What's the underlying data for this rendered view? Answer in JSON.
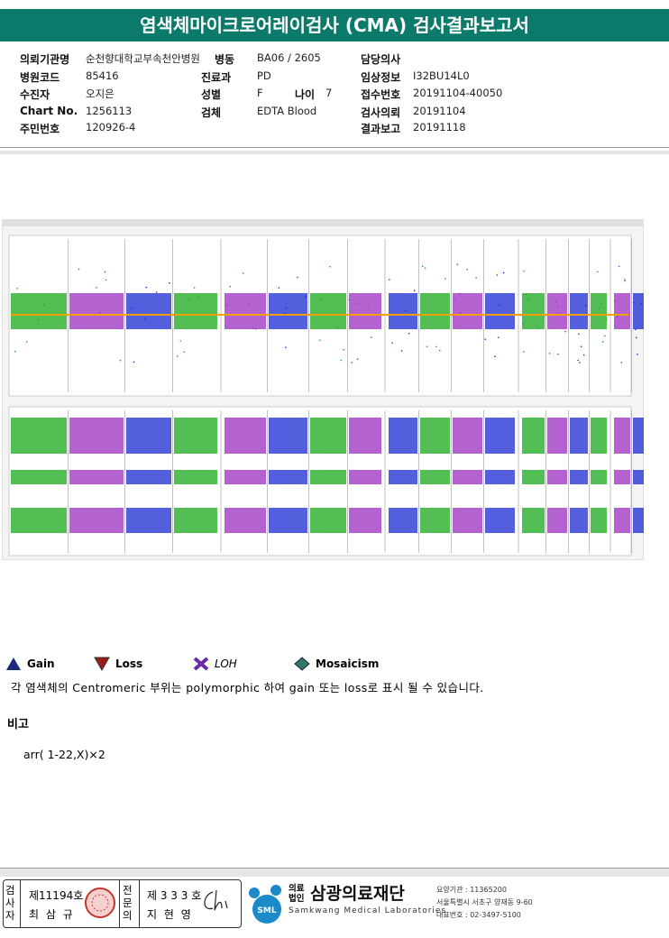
{
  "header": {
    "title": "염색체마이크로어레이검사 (CMA) 검사결과보고서"
  },
  "info": {
    "hospital": {
      "label": "의뢰기관명",
      "value": "순천향대학교부속천안병원"
    },
    "ward": {
      "label": "병동",
      "value": "BA06 / 2605"
    },
    "doctor": {
      "label": "담당의사"
    },
    "hospital_code": {
      "label": "병원코드",
      "value": "85416"
    },
    "department": {
      "label": "진료과",
      "value": "PD"
    },
    "clinical_info": {
      "label": "임상정보",
      "value": "I32BU14L0"
    },
    "patient": {
      "label": "수진자",
      "value": "오지은"
    },
    "sex": {
      "label": "성별",
      "value": "F"
    },
    "age": {
      "label": "나이",
      "value": "7"
    },
    "receipt_no": {
      "label": "접수번호",
      "value": "20191104-40050"
    },
    "chart_no": {
      "label": "Chart No.",
      "value": "1256113"
    },
    "specimen": {
      "label": "검체",
      "value": "EDTA Blood"
    },
    "request_date": {
      "label": "검사의뢰",
      "value": "20191104"
    },
    "resident_no": {
      "label": "주민번호",
      "value": "120926-4"
    },
    "report_date": {
      "label": "결과보고",
      "value": "20191118"
    }
  },
  "legend": [
    "Gain",
    "Loss",
    "LOH",
    "Mosaicism"
  ],
  "note": "각 염색체의 Centromeric 부위는 polymorphic 하여 gain 또는 loss로 표시 될 수 있습니다.",
  "remarks": {
    "title": "비고",
    "text": "arr( 1-22,X)×2"
  },
  "signatures": [
    {
      "role": "검사자",
      "license": "제11194호",
      "name": "최 삼 규"
    },
    {
      "role": "전문의",
      "license": "제 3 3 3 호",
      "name": "지 현 영"
    }
  ],
  "footer": {
    "logo": "SML",
    "org_type": "의료법인",
    "org_name": "삼광의료재단",
    "org_english": "Samkwang Medical Laboratories",
    "code": "요양기관 : 11365200",
    "address": "서울특별시 서초구 양재동 9-60",
    "phone": "대표번호 : 02-3497-5100"
  }
}
